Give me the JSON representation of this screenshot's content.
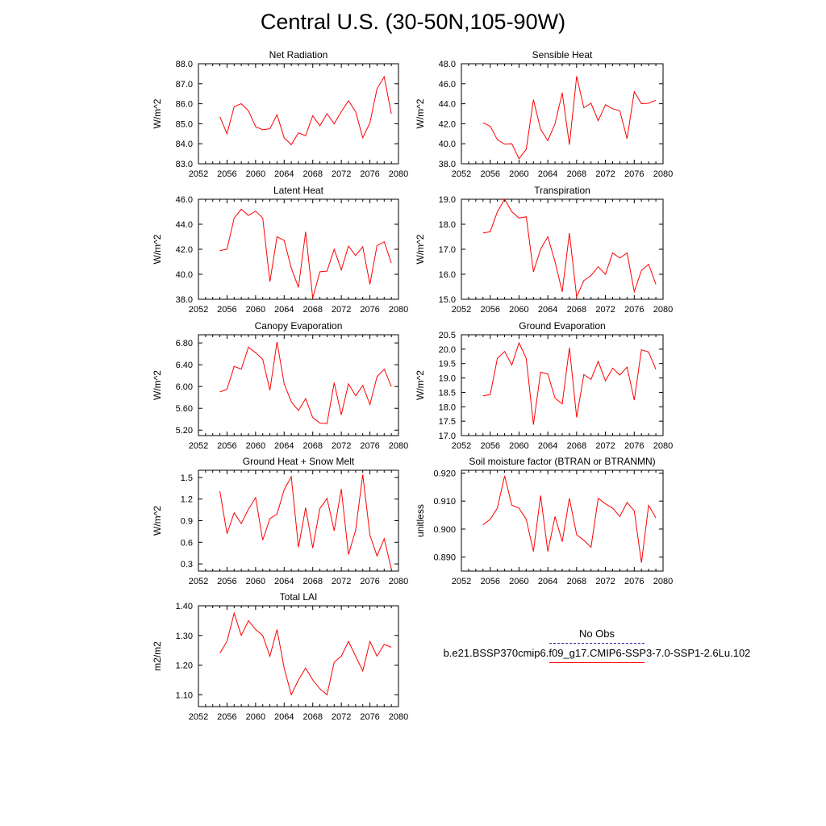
{
  "title": "Central U.S. (30-50N,105-90W)",
  "colors": {
    "series": "#ff0000",
    "obs": "#2a2aa0",
    "axis": "#000000"
  },
  "legend": {
    "obs_label": "No Obs",
    "model_label": "b.e21.BSSP370cmip6.f09_g17.CMIP6-SSP3-7.0-SSP1-2.6Lu.102"
  },
  "chart_data": [
    {
      "type": "line",
      "title": "Net Radiation",
      "ylabel": "W/m^2",
      "xlim": [
        2052,
        2080
      ],
      "xticks": [
        "2052",
        "2056",
        "2060",
        "2064",
        "2068",
        "2072",
        "2076",
        "2080"
      ],
      "ylim": [
        83.0,
        88.0
      ],
      "yticks": [
        "83.0",
        "84.0",
        "85.0",
        "86.0",
        "87.0",
        "88.0"
      ],
      "x": [
        2055,
        2056,
        2057,
        2058,
        2059,
        2060,
        2061,
        2062,
        2063,
        2064,
        2065,
        2066,
        2067,
        2068,
        2069,
        2070,
        2071,
        2072,
        2073,
        2074,
        2075,
        2076,
        2077,
        2078,
        2079
      ],
      "values": [
        85.35,
        84.5,
        85.85,
        86.0,
        85.65,
        84.85,
        84.7,
        84.75,
        85.45,
        84.3,
        83.95,
        84.55,
        84.4,
        85.4,
        84.9,
        85.5,
        85.0,
        85.6,
        86.15,
        85.6,
        84.3,
        85.05,
        86.75,
        87.35,
        85.5
      ]
    },
    {
      "type": "line",
      "title": "Sensible Heat",
      "ylabel": "W/m^2",
      "xlim": [
        2052,
        2080
      ],
      "xticks": [
        "2052",
        "2056",
        "2060",
        "2064",
        "2068",
        "2072",
        "2076",
        "2080"
      ],
      "ylim": [
        38.0,
        48.0
      ],
      "yticks": [
        "38.0",
        "40.0",
        "42.0",
        "44.0",
        "46.0",
        "48.0"
      ],
      "x": [
        2055,
        2056,
        2057,
        2058,
        2059,
        2060,
        2061,
        2062,
        2063,
        2064,
        2065,
        2066,
        2067,
        2068,
        2069,
        2070,
        2071,
        2072,
        2073,
        2074,
        2075,
        2076,
        2077,
        2078,
        2079
      ],
      "values": [
        42.1,
        41.75,
        40.4,
        39.95,
        40.0,
        38.5,
        39.45,
        44.4,
        41.45,
        40.3,
        42.0,
        45.1,
        39.9,
        46.75,
        43.6,
        44.05,
        42.3,
        43.9,
        43.5,
        43.3,
        40.5,
        45.2,
        44.0,
        44.05,
        44.35
      ]
    },
    {
      "type": "line",
      "title": "Latent Heat",
      "ylabel": "W/m^2",
      "xlim": [
        2052,
        2080
      ],
      "xticks": [
        "2052",
        "2056",
        "2060",
        "2064",
        "2068",
        "2072",
        "2076",
        "2080"
      ],
      "ylim": [
        38.0,
        46.0
      ],
      "yticks": [
        "38.0",
        "40.0",
        "42.0",
        "44.0",
        "46.0"
      ],
      "x": [
        2055,
        2056,
        2057,
        2058,
        2059,
        2060,
        2061,
        2062,
        2063,
        2064,
        2065,
        2066,
        2067,
        2068,
        2069,
        2070,
        2071,
        2072,
        2073,
        2074,
        2075,
        2076,
        2077,
        2078,
        2079
      ],
      "values": [
        41.9,
        42.0,
        44.5,
        45.2,
        44.7,
        45.05,
        44.5,
        39.4,
        43.0,
        42.7,
        40.5,
        38.95,
        43.4,
        38.1,
        40.2,
        40.25,
        42.0,
        40.35,
        42.25,
        41.5,
        42.2,
        39.2,
        42.3,
        42.6,
        40.9
      ]
    },
    {
      "type": "line",
      "title": "Transpiration",
      "ylabel": "W/m^2",
      "xlim": [
        2052,
        2080
      ],
      "xticks": [
        "2052",
        "2056",
        "2060",
        "2064",
        "2068",
        "2072",
        "2076",
        "2080"
      ],
      "ylim": [
        15.0,
        19.0
      ],
      "yticks": [
        "15.0",
        "16.0",
        "17.0",
        "18.0",
        "19.0"
      ],
      "x": [
        2055,
        2056,
        2057,
        2058,
        2059,
        2060,
        2061,
        2062,
        2063,
        2064,
        2065,
        2066,
        2067,
        2068,
        2069,
        2070,
        2071,
        2072,
        2073,
        2074,
        2075,
        2076,
        2077,
        2078,
        2079
      ],
      "values": [
        17.65,
        17.7,
        18.5,
        19.0,
        18.5,
        18.25,
        18.3,
        16.1,
        17.0,
        17.5,
        16.5,
        15.3,
        17.65,
        15.1,
        15.75,
        15.95,
        16.3,
        16.0,
        16.85,
        16.65,
        16.85,
        15.3,
        16.15,
        16.4,
        15.6
      ]
    },
    {
      "type": "line",
      "title": "Canopy Evaporation",
      "ylabel": "W/m^2",
      "xlim": [
        2052,
        2080
      ],
      "xticks": [
        "2052",
        "2056",
        "2060",
        "2064",
        "2068",
        "2072",
        "2076",
        "2080"
      ],
      "ylim": [
        5.1,
        6.95
      ],
      "yticks": [
        "5.20",
        "5.60",
        "6.00",
        "6.40",
        "6.80"
      ],
      "x": [
        2055,
        2056,
        2057,
        2058,
        2059,
        2060,
        2061,
        2062,
        2063,
        2064,
        2065,
        2066,
        2067,
        2068,
        2069,
        2070,
        2071,
        2072,
        2073,
        2074,
        2075,
        2076,
        2077,
        2078,
        2079
      ],
      "values": [
        5.9,
        5.95,
        6.37,
        6.32,
        6.72,
        6.62,
        6.5,
        5.93,
        6.82,
        6.05,
        5.72,
        5.56,
        5.78,
        5.43,
        5.33,
        5.32,
        6.07,
        5.48,
        6.05,
        5.83,
        6.02,
        5.67,
        6.18,
        6.32,
        6.0
      ]
    },
    {
      "type": "line",
      "title": "Ground Evaporation",
      "ylabel": "W/m^2",
      "xlim": [
        2052,
        2080
      ],
      "xticks": [
        "2052",
        "2056",
        "2060",
        "2064",
        "2068",
        "2072",
        "2076",
        "2080"
      ],
      "ylim": [
        17.0,
        20.5
      ],
      "yticks": [
        "17.0",
        "17.5",
        "18.0",
        "18.5",
        "19.0",
        "19.5",
        "20.0",
        "20.5"
      ],
      "x": [
        2055,
        2056,
        2057,
        2058,
        2059,
        2060,
        2061,
        2062,
        2063,
        2064,
        2065,
        2066,
        2067,
        2068,
        2069,
        2070,
        2071,
        2072,
        2073,
        2074,
        2075,
        2076,
        2077,
        2078,
        2079
      ],
      "values": [
        18.38,
        18.42,
        19.68,
        19.92,
        19.45,
        20.22,
        19.68,
        17.38,
        19.2,
        19.14,
        18.3,
        18.1,
        20.05,
        17.63,
        19.12,
        18.95,
        19.58,
        18.9,
        19.34,
        19.1,
        19.38,
        18.23,
        19.98,
        19.9,
        19.3
      ]
    },
    {
      "type": "line",
      "title": "Ground Heat + Snow Melt",
      "ylabel": "W/m^2",
      "xlim": [
        2052,
        2080
      ],
      "xticks": [
        "2052",
        "2056",
        "2060",
        "2064",
        "2068",
        "2072",
        "2076",
        "2080"
      ],
      "ylim": [
        0.2,
        1.6
      ],
      "yticks": [
        "0.3",
        "0.6",
        "0.9",
        "1.2",
        "1.5"
      ],
      "x": [
        2055,
        2056,
        2057,
        2058,
        2059,
        2060,
        2061,
        2062,
        2063,
        2064,
        2065,
        2066,
        2067,
        2068,
        2069,
        2070,
        2071,
        2072,
        2073,
        2074,
        2075,
        2076,
        2077,
        2078,
        2079
      ],
      "values": [
        1.31,
        0.72,
        1.01,
        0.86,
        1.06,
        1.22,
        0.63,
        0.93,
        0.99,
        1.33,
        1.51,
        0.53,
        1.08,
        0.52,
        1.07,
        1.21,
        0.76,
        1.34,
        0.43,
        0.77,
        1.54,
        0.7,
        0.41,
        0.65,
        0.23
      ]
    },
    {
      "type": "line",
      "title": "Soil moisture factor (BTRAN or BTRANMN)",
      "ylabel": "unitless",
      "xlim": [
        2052,
        2080
      ],
      "xticks": [
        "2052",
        "2056",
        "2060",
        "2064",
        "2068",
        "2072",
        "2076",
        "2080"
      ],
      "ylim": [
        0.885,
        0.921
      ],
      "yticks": [
        "0.890",
        "0.900",
        "0.910",
        "0.920"
      ],
      "x": [
        2055,
        2056,
        2057,
        2058,
        2059,
        2060,
        2061,
        2062,
        2063,
        2064,
        2065,
        2066,
        2067,
        2068,
        2069,
        2070,
        2071,
        2072,
        2073,
        2074,
        2075,
        2076,
        2077,
        2078,
        2079
      ],
      "values": [
        0.9015,
        0.9035,
        0.9075,
        0.919,
        0.9085,
        0.9075,
        0.9035,
        0.892,
        0.912,
        0.892,
        0.9045,
        0.8955,
        0.911,
        0.898,
        0.896,
        0.8935,
        0.911,
        0.909,
        0.9075,
        0.9045,
        0.9095,
        0.9065,
        0.888,
        0.9085,
        0.904
      ]
    },
    {
      "type": "line",
      "title": "Total LAI",
      "ylabel": "m2/m2",
      "xlim": [
        2052,
        2080
      ],
      "xticks": [
        "2052",
        "2056",
        "2060",
        "2064",
        "2068",
        "2072",
        "2076",
        "2080"
      ],
      "ylim": [
        1.06,
        1.4
      ],
      "yticks": [
        "1.10",
        "1.20",
        "1.30",
        "1.40"
      ],
      "x": [
        2055,
        2056,
        2057,
        2058,
        2059,
        2060,
        2061,
        2062,
        2063,
        2064,
        2065,
        2066,
        2067,
        2068,
        2069,
        2070,
        2071,
        2072,
        2073,
        2074,
        2075,
        2076,
        2077,
        2078,
        2079
      ],
      "values": [
        1.24,
        1.28,
        1.375,
        1.3,
        1.35,
        1.32,
        1.3,
        1.23,
        1.32,
        1.19,
        1.1,
        1.15,
        1.19,
        1.15,
        1.12,
        1.1,
        1.21,
        1.23,
        1.28,
        1.23,
        1.18,
        1.28,
        1.23,
        1.27,
        1.26
      ]
    }
  ]
}
